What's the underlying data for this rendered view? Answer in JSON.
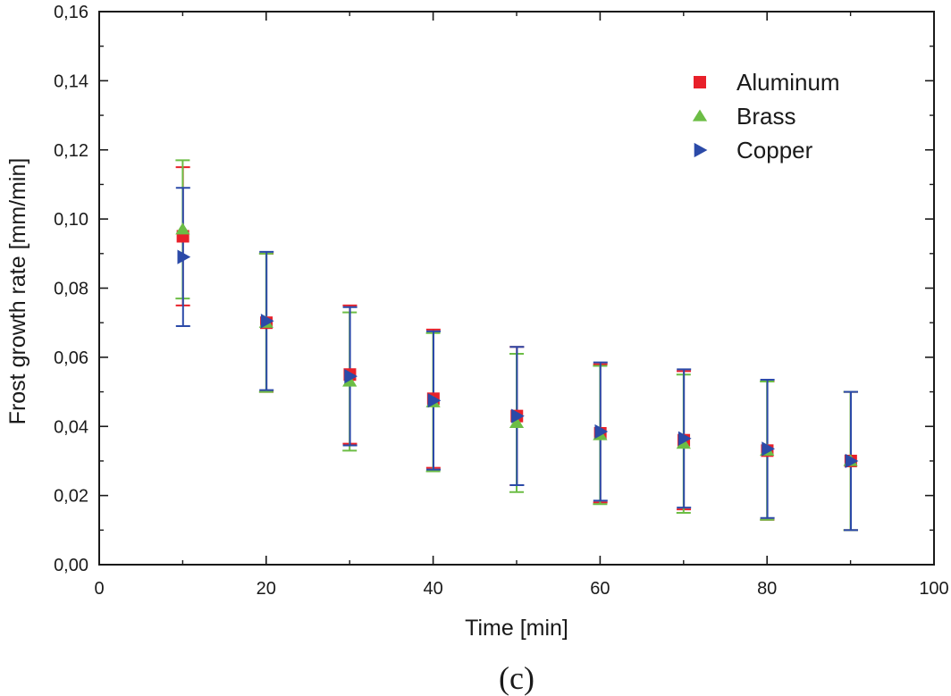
{
  "caption": "(c)",
  "chart_data": {
    "type": "scatter",
    "xlabel": "Time [min]",
    "ylabel": "Frost growth rate [mm/min]",
    "xlim": [
      0,
      100
    ],
    "ylim": [
      0,
      0.16
    ],
    "xticks": [
      0,
      20,
      40,
      60,
      80,
      100
    ],
    "xtick_labels": [
      "0",
      "20",
      "40",
      "60",
      "80",
      "100"
    ],
    "yticks": [
      0,
      0.02,
      0.04,
      0.06,
      0.08,
      0.1,
      0.12,
      0.14,
      0.16
    ],
    "ytick_labels": [
      "0,00",
      "0,02",
      "0,04",
      "0,06",
      "0,08",
      "0,10",
      "0,12",
      "0,14",
      "0,16"
    ],
    "grid": false,
    "legend_position": "top-right",
    "error_bars": true,
    "series": [
      {
        "name": "Aluminum",
        "marker": "square",
        "color": "#e8202a",
        "x": [
          10,
          20,
          30,
          40,
          50,
          60,
          70,
          80,
          90
        ],
        "y": [
          0.095,
          0.07,
          0.055,
          0.048,
          0.043,
          0.038,
          0.036,
          0.033,
          0.03
        ],
        "err": [
          0.02,
          0.02,
          0.02,
          0.02,
          0.02,
          0.02,
          0.02,
          0.02,
          0.02
        ]
      },
      {
        "name": "Brass",
        "marker": "triangle-up",
        "color": "#6cbd45",
        "x": [
          10,
          20,
          30,
          40,
          50,
          60,
          70,
          80,
          90
        ],
        "y": [
          0.097,
          0.07,
          0.053,
          0.047,
          0.041,
          0.0375,
          0.035,
          0.033,
          0.03
        ],
        "err": [
          0.02,
          0.02,
          0.02,
          0.02,
          0.02,
          0.02,
          0.02,
          0.02,
          0.02
        ]
      },
      {
        "name": "Copper",
        "marker": "triangle-right",
        "color": "#2b4aa8",
        "x": [
          10,
          20,
          30,
          40,
          50,
          60,
          70,
          80,
          90
        ],
        "y": [
          0.089,
          0.0705,
          0.0545,
          0.0475,
          0.043,
          0.0385,
          0.0365,
          0.0335,
          0.03
        ],
        "err": [
          0.02,
          0.02,
          0.02,
          0.02,
          0.02,
          0.02,
          0.02,
          0.02,
          0.02
        ]
      }
    ]
  }
}
